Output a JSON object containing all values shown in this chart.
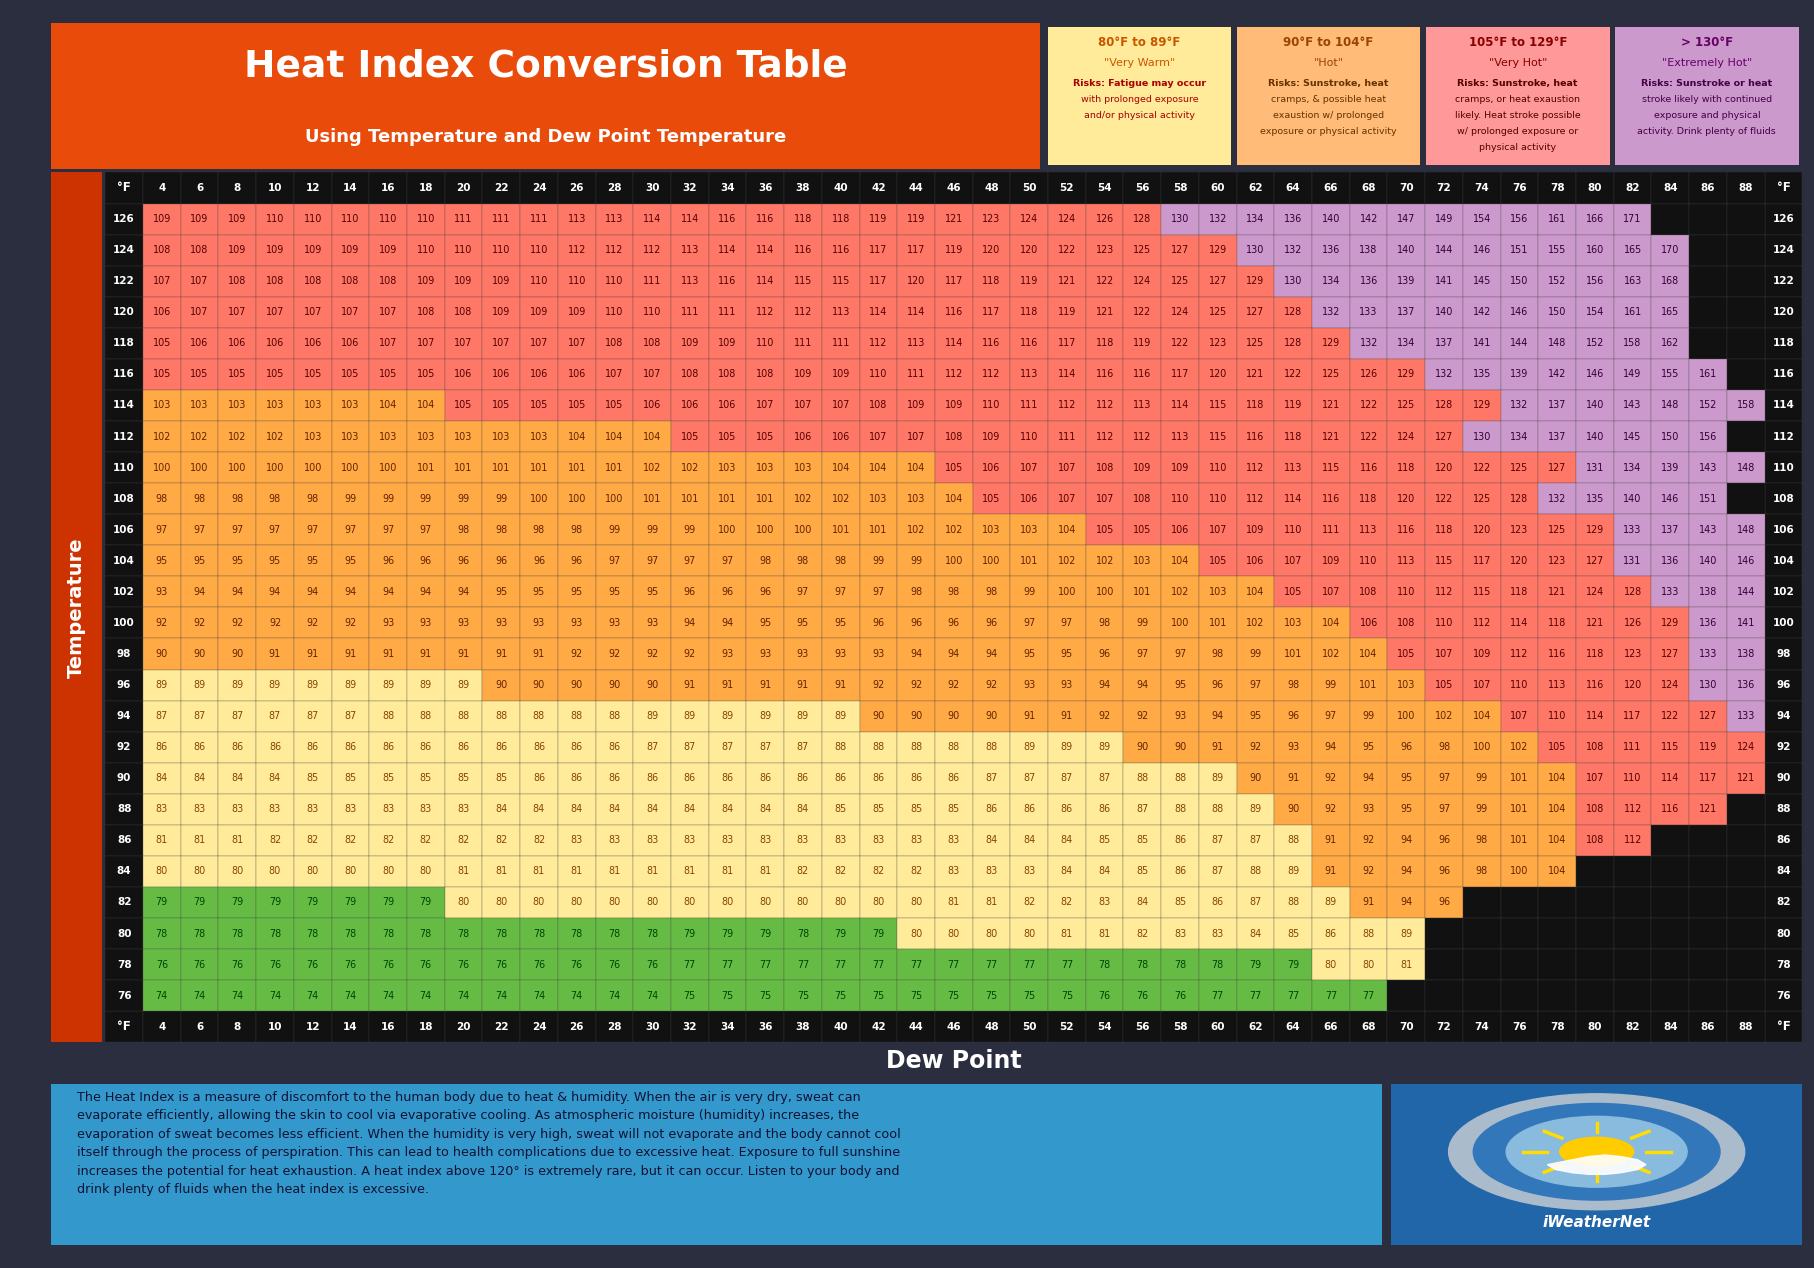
{
  "title": "Heat Index Conversion Table",
  "subtitle": "Using Temperature and Dew Point Temperature",
  "dew_point_label": "Dew Point",
  "footnote": "The Heat Index is a measure of discomfort to the human body due to heat & humidity. When the air is very dry, sweat can\nevaporate efficiently, allowing the skin to cool via evaporative cooling. As atmospheric moisture (humidity) increases, the\nevaporation of sweat becomes less efficient. When the humidity is very high, sweat will not evaporate and the body cannot cool\nitself through the process of perspiration. This can lead to health complications due to excessive heat. Exposure to full sunshine\nincreases the potential for heat exhaustion. A heat index above 120° is extremely rare, but it can occur. Listen to your body and\ndrink plenty of fluids when the heat index is excessive.",
  "legend_boxes": [
    {
      "range": "80°F to 89°F",
      "category": "\"Very Warm\"",
      "risks_bold": "Risks:",
      "risks_rest": " Fatigue may occur\nwith prolonged exposure\nand/or physical activity",
      "bg": "#FFEB99",
      "range_color": "#CC5500",
      "cat_color": "#CC5500",
      "risk_color": "#AA0000"
    },
    {
      "range": "90°F to 104°F",
      "category": "\"Hot\"",
      "risks_bold": "Risks:",
      "risks_rest": " Sunstroke, heat\ncramps, & possible heat\nexaustion w/ prolonged\nexposure or physical activity",
      "bg": "#FFBB77",
      "range_color": "#994400",
      "cat_color": "#994400",
      "risk_color": "#663300"
    },
    {
      "range": "105°F to 129°F",
      "category": "\"Very Hot\"",
      "risks_bold": "Risks:",
      "risks_rest": " Sunstroke, heat\ncramps, or heat exaustion\nlikely. Heat stroke possible\nw/ prolonged exposure or\nphysical activity",
      "bg": "#FF9999",
      "range_color": "#880000",
      "cat_color": "#880000",
      "risk_color": "#550000"
    },
    {
      "range": "> 130°F",
      "category": "\"Extremely Hot\"",
      "risks_bold": "Risks:",
      "risks_rest": " Sunstroke or heat\nstroke likely with continued\nexposure and physical\nactivity. Drink plenty of fluids",
      "bg": "#CC99CC",
      "range_color": "#660066",
      "cat_color": "#660066",
      "risk_color": "#440044"
    }
  ],
  "dew_points": [
    4,
    6,
    8,
    10,
    12,
    14,
    16,
    18,
    20,
    22,
    24,
    26,
    28,
    30,
    32,
    34,
    36,
    38,
    40,
    42,
    44,
    46,
    48,
    50,
    52,
    54,
    56,
    58,
    60,
    62,
    64,
    66,
    68,
    70,
    72,
    74,
    76,
    78,
    80,
    82,
    84,
    86,
    88
  ],
  "temperatures": [
    126,
    124,
    122,
    120,
    118,
    116,
    114,
    112,
    110,
    108,
    106,
    104,
    102,
    100,
    98,
    96,
    94,
    92,
    90,
    88,
    86,
    84,
    82,
    80,
    78,
    76
  ],
  "data": {
    "126": [
      109,
      109,
      109,
      110,
      110,
      110,
      110,
      110,
      111,
      111,
      111,
      113,
      113,
      114,
      114,
      116,
      116,
      118,
      118,
      119,
      119,
      121,
      123,
      124,
      124,
      126,
      128,
      130,
      132,
      134,
      136,
      140,
      142,
      147,
      149,
      154,
      156,
      161,
      166,
      171,
      null,
      null,
      null
    ],
    "124": [
      108,
      108,
      109,
      109,
      109,
      109,
      109,
      110,
      110,
      110,
      110,
      112,
      112,
      112,
      113,
      114,
      114,
      116,
      116,
      117,
      117,
      119,
      120,
      120,
      122,
      123,
      125,
      127,
      129,
      130,
      132,
      136,
      138,
      140,
      144,
      146,
      151,
      155,
      160,
      165,
      170,
      null,
      null
    ],
    "122": [
      107,
      107,
      108,
      108,
      108,
      108,
      108,
      109,
      109,
      109,
      110,
      110,
      110,
      111,
      113,
      116,
      114,
      115,
      115,
      117,
      120,
      117,
      118,
      119,
      121,
      122,
      124,
      125,
      127,
      129,
      130,
      134,
      136,
      139,
      141,
      145,
      150,
      152,
      156,
      163,
      168,
      null,
      null
    ],
    "120": [
      106,
      107,
      107,
      107,
      107,
      107,
      107,
      108,
      108,
      109,
      109,
      109,
      110,
      110,
      111,
      111,
      112,
      112,
      113,
      114,
      114,
      116,
      117,
      118,
      119,
      121,
      122,
      124,
      125,
      127,
      128,
      132,
      133,
      137,
      140,
      142,
      146,
      150,
      154,
      161,
      165,
      null,
      null
    ],
    "118": [
      105,
      106,
      106,
      106,
      106,
      106,
      107,
      107,
      107,
      107,
      107,
      107,
      108,
      108,
      109,
      109,
      110,
      111,
      111,
      112,
      113,
      114,
      116,
      116,
      117,
      118,
      119,
      122,
      123,
      125,
      128,
      129,
      132,
      134,
      137,
      141,
      144,
      148,
      152,
      158,
      162,
      null,
      null
    ],
    "116": [
      105,
      105,
      105,
      105,
      105,
      105,
      105,
      105,
      106,
      106,
      106,
      106,
      107,
      107,
      108,
      108,
      108,
      109,
      109,
      110,
      111,
      112,
      112,
      113,
      114,
      116,
      116,
      117,
      120,
      121,
      122,
      125,
      126,
      129,
      132,
      135,
      139,
      142,
      146,
      149,
      155,
      161,
      null
    ],
    "114": [
      103,
      103,
      103,
      103,
      103,
      103,
      104,
      104,
      105,
      105,
      105,
      105,
      105,
      106,
      106,
      106,
      107,
      107,
      107,
      108,
      109,
      109,
      110,
      111,
      112,
      112,
      113,
      114,
      115,
      118,
      119,
      121,
      122,
      125,
      128,
      129,
      132,
      137,
      140,
      143,
      148,
      152,
      158
    ],
    "112": [
      102,
      102,
      102,
      102,
      103,
      103,
      103,
      103,
      103,
      103,
      103,
      104,
      104,
      104,
      105,
      105,
      105,
      106,
      106,
      107,
      107,
      108,
      109,
      110,
      111,
      112,
      112,
      113,
      115,
      116,
      118,
      121,
      122,
      124,
      127,
      130,
      134,
      137,
      140,
      145,
      150,
      156,
      null
    ],
    "110": [
      100,
      100,
      100,
      100,
      100,
      100,
      100,
      101,
      101,
      101,
      101,
      101,
      101,
      102,
      102,
      103,
      103,
      103,
      104,
      104,
      104,
      105,
      106,
      107,
      107,
      108,
      109,
      109,
      110,
      112,
      113,
      115,
      116,
      118,
      120,
      122,
      125,
      127,
      131,
      134,
      139,
      143,
      148
    ],
    "108": [
      98,
      98,
      98,
      98,
      98,
      99,
      99,
      99,
      99,
      99,
      100,
      100,
      100,
      101,
      101,
      101,
      101,
      102,
      102,
      103,
      103,
      104,
      105,
      106,
      107,
      107,
      108,
      110,
      110,
      112,
      114,
      116,
      118,
      120,
      122,
      125,
      128,
      132,
      135,
      140,
      146,
      151,
      null
    ],
    "106": [
      97,
      97,
      97,
      97,
      97,
      97,
      97,
      97,
      98,
      98,
      98,
      98,
      99,
      99,
      99,
      100,
      100,
      100,
      101,
      101,
      102,
      102,
      103,
      103,
      104,
      105,
      105,
      106,
      107,
      109,
      110,
      111,
      113,
      116,
      118,
      120,
      123,
      125,
      129,
      133,
      137,
      143,
      148
    ],
    "104": [
      95,
      95,
      95,
      95,
      95,
      95,
      96,
      96,
      96,
      96,
      96,
      96,
      97,
      97,
      97,
      97,
      98,
      98,
      98,
      99,
      99,
      100,
      100,
      101,
      102,
      102,
      103,
      104,
      105,
      106,
      107,
      109,
      110,
      113,
      115,
      117,
      120,
      123,
      127,
      131,
      136,
      140,
      146
    ],
    "102": [
      93,
      94,
      94,
      94,
      94,
      94,
      94,
      94,
      94,
      95,
      95,
      95,
      95,
      95,
      96,
      96,
      96,
      97,
      97,
      97,
      98,
      98,
      98,
      99,
      100,
      100,
      101,
      102,
      103,
      104,
      105,
      107,
      108,
      110,
      112,
      115,
      118,
      121,
      124,
      128,
      133,
      138,
      144
    ],
    "100": [
      92,
      92,
      92,
      92,
      92,
      92,
      93,
      93,
      93,
      93,
      93,
      93,
      93,
      93,
      94,
      94,
      95,
      95,
      95,
      96,
      96,
      96,
      96,
      97,
      97,
      98,
      99,
      100,
      101,
      102,
      103,
      104,
      106,
      108,
      110,
      112,
      114,
      118,
      121,
      126,
      129,
      136,
      141
    ],
    "98": [
      90,
      90,
      90,
      91,
      91,
      91,
      91,
      91,
      91,
      91,
      91,
      92,
      92,
      92,
      92,
      93,
      93,
      93,
      93,
      93,
      94,
      94,
      94,
      95,
      95,
      96,
      97,
      97,
      98,
      99,
      101,
      102,
      104,
      105,
      107,
      109,
      112,
      116,
      118,
      123,
      127,
      133,
      138
    ],
    "96": [
      89,
      89,
      89,
      89,
      89,
      89,
      89,
      89,
      89,
      90,
      90,
      90,
      90,
      90,
      91,
      91,
      91,
      91,
      91,
      92,
      92,
      92,
      92,
      93,
      93,
      94,
      94,
      95,
      96,
      97,
      98,
      99,
      101,
      103,
      105,
      107,
      110,
      113,
      116,
      120,
      124,
      130,
      136
    ],
    "94": [
      87,
      87,
      87,
      87,
      87,
      87,
      88,
      88,
      88,
      88,
      88,
      88,
      88,
      89,
      89,
      89,
      89,
      89,
      89,
      90,
      90,
      90,
      90,
      91,
      91,
      92,
      92,
      93,
      94,
      95,
      96,
      97,
      99,
      100,
      102,
      104,
      107,
      110,
      114,
      117,
      122,
      127,
      133
    ],
    "92": [
      86,
      86,
      86,
      86,
      86,
      86,
      86,
      86,
      86,
      86,
      86,
      86,
      86,
      87,
      87,
      87,
      87,
      87,
      88,
      88,
      88,
      88,
      88,
      89,
      89,
      89,
      90,
      90,
      91,
      92,
      93,
      94,
      95,
      96,
      98,
      100,
      102,
      105,
      108,
      111,
      115,
      119,
      124
    ],
    "90": [
      84,
      84,
      84,
      84,
      85,
      85,
      85,
      85,
      85,
      85,
      86,
      86,
      86,
      86,
      86,
      86,
      86,
      86,
      86,
      86,
      86,
      86,
      87,
      87,
      87,
      87,
      88,
      88,
      89,
      90,
      91,
      92,
      94,
      95,
      97,
      99,
      101,
      104,
      107,
      110,
      114,
      117,
      121
    ],
    "88": [
      83,
      83,
      83,
      83,
      83,
      83,
      83,
      83,
      83,
      84,
      84,
      84,
      84,
      84,
      84,
      84,
      84,
      84,
      85,
      85,
      85,
      85,
      86,
      86,
      86,
      86,
      87,
      88,
      88,
      89,
      90,
      92,
      93,
      95,
      97,
      99,
      101,
      104,
      108,
      112,
      116,
      121,
      null
    ],
    "86": [
      81,
      81,
      81,
      82,
      82,
      82,
      82,
      82,
      82,
      82,
      82,
      83,
      83,
      83,
      83,
      83,
      83,
      83,
      83,
      83,
      83,
      83,
      84,
      84,
      84,
      85,
      85,
      86,
      87,
      87,
      88,
      91,
      92,
      94,
      96,
      98,
      101,
      104,
      108,
      112,
      null,
      null,
      null
    ],
    "84": [
      80,
      80,
      80,
      80,
      80,
      80,
      80,
      80,
      81,
      81,
      81,
      81,
      81,
      81,
      81,
      81,
      81,
      82,
      82,
      82,
      82,
      83,
      83,
      83,
      84,
      84,
      85,
      86,
      87,
      88,
      89,
      91,
      92,
      94,
      96,
      98,
      100,
      104,
      null,
      null,
      null,
      null,
      null
    ],
    "82": [
      79,
      79,
      79,
      79,
      79,
      79,
      79,
      79,
      80,
      80,
      80,
      80,
      80,
      80,
      80,
      80,
      80,
      80,
      80,
      80,
      80,
      81,
      81,
      82,
      82,
      83,
      84,
      85,
      86,
      87,
      88,
      89,
      91,
      94,
      96,
      null,
      null,
      null,
      null,
      null,
      null,
      null,
      null
    ],
    "80": [
      78,
      78,
      78,
      78,
      78,
      78,
      78,
      78,
      78,
      78,
      78,
      78,
      78,
      78,
      79,
      79,
      79,
      78,
      79,
      79,
      80,
      80,
      80,
      80,
      81,
      81,
      82,
      83,
      83,
      84,
      85,
      86,
      88,
      89,
      null,
      null,
      null,
      null,
      null,
      null,
      null,
      null,
      null
    ],
    "78": [
      76,
      76,
      76,
      76,
      76,
      76,
      76,
      76,
      76,
      76,
      76,
      76,
      76,
      76,
      77,
      77,
      77,
      77,
      77,
      77,
      77,
      77,
      77,
      77,
      77,
      78,
      78,
      78,
      78,
      79,
      79,
      80,
      80,
      81,
      null,
      null,
      null,
      null,
      null,
      null,
      null,
      null,
      null
    ],
    "76": [
      74,
      74,
      74,
      74,
      74,
      74,
      74,
      74,
      74,
      74,
      74,
      74,
      74,
      74,
      75,
      75,
      75,
      75,
      75,
      75,
      75,
      75,
      75,
      75,
      75,
      76,
      76,
      76,
      77,
      77,
      77,
      77,
      77,
      null,
      null,
      null,
      null,
      null,
      null,
      null,
      null,
      null,
      null
    ]
  }
}
